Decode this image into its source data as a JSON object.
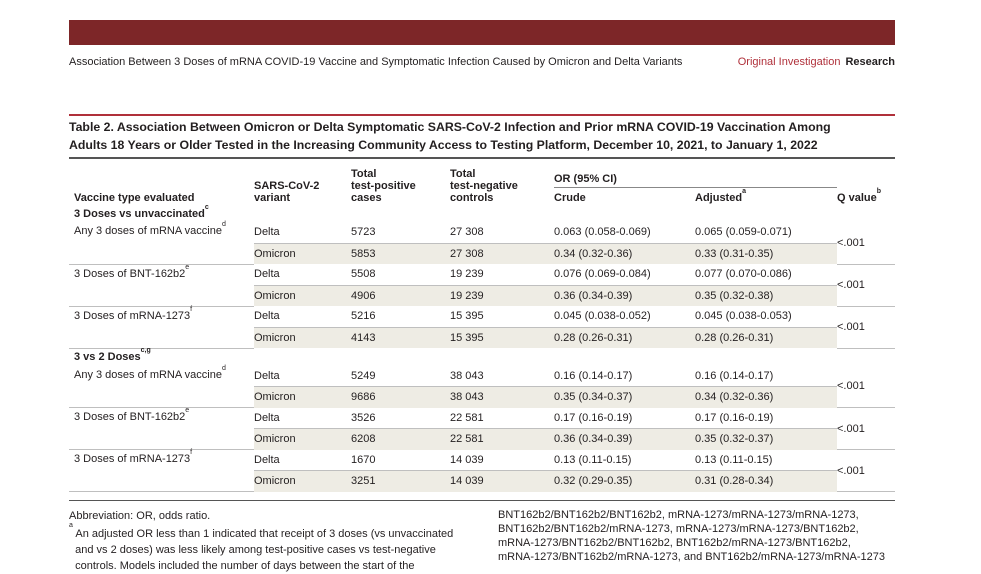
{
  "header": {
    "running_title": "Association Between 3 Doses of mRNA COVID-19 Vaccine and Symptomatic Infection Caused by Omicron and Delta Variants",
    "section": "Original Investigation",
    "category": "Research",
    "bar_color": "#7d2628",
    "accent_color": "#b0303a"
  },
  "table_title": {
    "line1": "Table 2. Association Between Omicron or Delta Symptomatic SARS-CoV-2 Infection and Prior mRNA COVID-19 Vaccination Among",
    "line2": "Adults 18 Years or Older Tested in the Increasing Community Access to Testing Platform, December 10, 2021, to January 1, 2022"
  },
  "columns": {
    "vaccine": "Vaccine type evaluated",
    "variant1": "SARS-CoV-2",
    "variant2": "variant",
    "pos1": "Total",
    "pos2": "test-positive",
    "pos3": "cases",
    "neg1": "Total",
    "neg2": "test-negative",
    "neg3": "controls",
    "or": "OR (95% CI)",
    "crude": "Crude",
    "adjusted": "Adjusted",
    "adjusted_sup": "a",
    "q": "Q value",
    "q_sup": "b"
  },
  "sections": [
    {
      "label": "3 Doses vs unvaccinated",
      "sup": "c",
      "groups": [
        {
          "vaccine": "Any 3 doses of mRNA vaccine",
          "sup": "d",
          "q": "<.001",
          "rows": [
            {
              "variant": "Delta",
              "pos": "5723",
              "neg": "27 308",
              "crude": "0.063 (0.058-0.069)",
              "adj": "0.065 (0.059-0.071)"
            },
            {
              "variant": "Omicron",
              "pos": "5853",
              "neg": "27 308",
              "crude": "0.34 (0.32-0.36)",
              "adj": "0.33 (0.31-0.35)"
            }
          ]
        },
        {
          "vaccine": "3 Doses of BNT-162b2",
          "sup": "e",
          "q": "<.001",
          "rows": [
            {
              "variant": "Delta",
              "pos": "5508",
              "neg": "19 239",
              "crude": "0.076 (0.069-0.084)",
              "adj": "0.077 (0.070-0.086)"
            },
            {
              "variant": "Omicron",
              "pos": "4906",
              "neg": "19 239",
              "crude": "0.36 (0.34-0.39)",
              "adj": "0.35 (0.32-0.38)"
            }
          ]
        },
        {
          "vaccine": "3 Doses of mRNA-1273",
          "sup": "f",
          "q": "<.001",
          "rows": [
            {
              "variant": "Delta",
              "pos": "5216",
              "neg": "15 395",
              "crude": "0.045 (0.038-0.052)",
              "adj": "0.045 (0.038-0.053)"
            },
            {
              "variant": "Omicron",
              "pos": "4143",
              "neg": "15 395",
              "crude": "0.28 (0.26-0.31)",
              "adj": "0.28 (0.26-0.31)"
            }
          ]
        }
      ]
    },
    {
      "label": "3 vs 2 Doses",
      "sup": "c,g",
      "groups": [
        {
          "vaccine": "Any 3 doses of mRNA vaccine",
          "sup": "d",
          "q": "<.001",
          "rows": [
            {
              "variant": "Delta",
              "pos": "5249",
              "neg": "38 043",
              "crude": "0.16 (0.14-0.17)",
              "adj": "0.16 (0.14-0.17)"
            },
            {
              "variant": "Omicron",
              "pos": "9686",
              "neg": "38 043",
              "crude": "0.35 (0.34-0.37)",
              "adj": "0.34 (0.32-0.36)"
            }
          ]
        },
        {
          "vaccine": "3 Doses of BNT-162b2",
          "sup": "e",
          "q": "<.001",
          "rows": [
            {
              "variant": "Delta",
              "pos": "3526",
              "neg": "22 581",
              "crude": "0.17 (0.16-0.19)",
              "adj": "0.17 (0.16-0.19)"
            },
            {
              "variant": "Omicron",
              "pos": "6208",
              "neg": "22 581",
              "crude": "0.36 (0.34-0.39)",
              "adj": "0.35 (0.32-0.37)"
            }
          ]
        },
        {
          "vaccine": "3 Doses of mRNA-1273",
          "sup": "f",
          "q": "<.001",
          "rows": [
            {
              "variant": "Delta",
              "pos": "1670",
              "neg": "14 039",
              "crude": "0.13 (0.11-0.15)",
              "adj": "0.13 (0.11-0.15)"
            },
            {
              "variant": "Omicron",
              "pos": "3251",
              "neg": "14 039",
              "crude": "0.32 (0.29-0.35)",
              "adj": "0.31 (0.28-0.34)"
            }
          ]
        }
      ]
    }
  ],
  "footnotes": {
    "abbreviation": "Abbreviation: OR, odds ratio.",
    "a_sup": "a",
    "a_line1": "An adjusted OR less than 1 indicated that receipt of 3 doses (vs unvaccinated",
    "a_line2": "and vs 2 doses) was less likely among test-positive cases vs test-negative",
    "a_line3": "controls. Models included the number of days between the start of the",
    "right_line1": "BNT162b2/BNT162b2/BNT162b2, mRNA-1273/mRNA-1273/mRNA-1273,",
    "right_line2": "BNT162b2/BNT162b2/mRNA-1273, mRNA-1273/mRNA-1273/BNT162b2,",
    "right_line3": "mRNA-1273/BNT162b2/BNT162b2, BNT162b2/mRNA-1273/BNT162b2,",
    "right_line4": "mRNA-1273/BNT162b2/mRNA-1273, and BNT162b2/mRNA-1273/mRNA-1273"
  }
}
